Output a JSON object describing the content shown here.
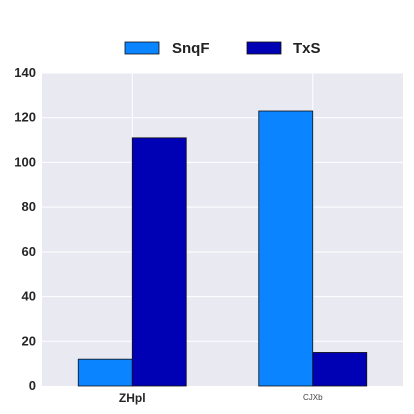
{
  "chart_data": {
    "type": "bar",
    "categories": [
      "ZHpl",
      "CJXb"
    ],
    "series": [
      {
        "name": "SnqF",
        "values": [
          12,
          123
        ],
        "color": "#0a84ff"
      },
      {
        "name": "TxS",
        "values": [
          111,
          15
        ],
        "color": "#0000b4"
      }
    ],
    "ylim": [
      0,
      140
    ],
    "yticks": [
      0,
      20,
      40,
      60,
      80,
      100,
      120,
      140
    ],
    "grid": true,
    "legend": "top-center",
    "background": "#e9e9f2",
    "title": "",
    "xlabel": "",
    "ylabel": ""
  }
}
